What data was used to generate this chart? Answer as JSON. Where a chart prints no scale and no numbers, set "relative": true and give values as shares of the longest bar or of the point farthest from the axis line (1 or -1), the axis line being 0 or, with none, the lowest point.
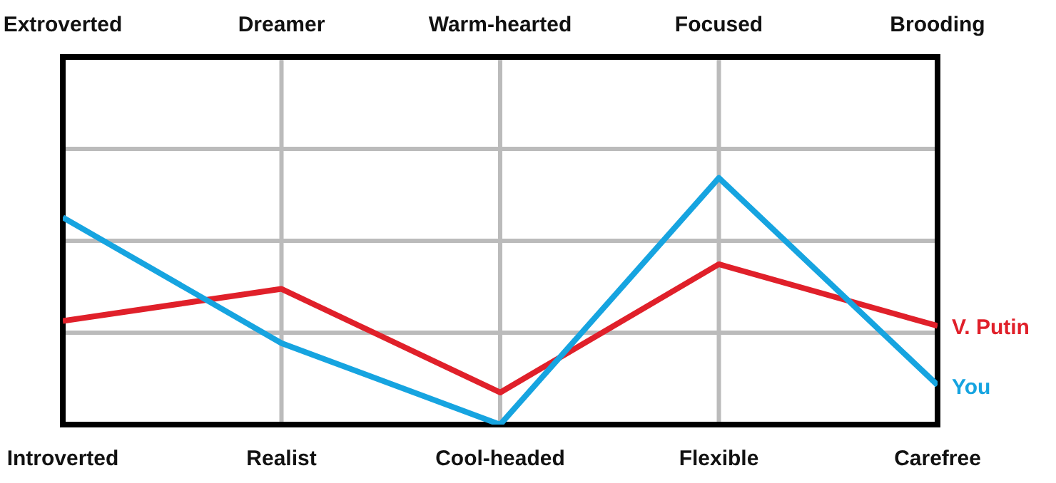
{
  "chart_data": {
    "type": "line",
    "relative": true,
    "categories": [
      "Introverted",
      "Realist",
      "Cool-headed",
      "Flexible",
      "Carefree"
    ],
    "annotations": [
      "Extroverted",
      "Dreamer",
      "Warm-hearted",
      "Focused",
      "Brooding"
    ],
    "series": [
      {
        "name": "V. Putin",
        "color": "#e0202a",
        "values": [
          0.42,
          0.55,
          0.13,
          0.65,
          0.4
        ]
      },
      {
        "name": "You",
        "color": "#16a4e0",
        "values": [
          0.84,
          0.33,
          0,
          1,
          0.16
        ]
      }
    ],
    "grid": true,
    "legend": false,
    "marker": "none",
    "line_style": "solid"
  }
}
